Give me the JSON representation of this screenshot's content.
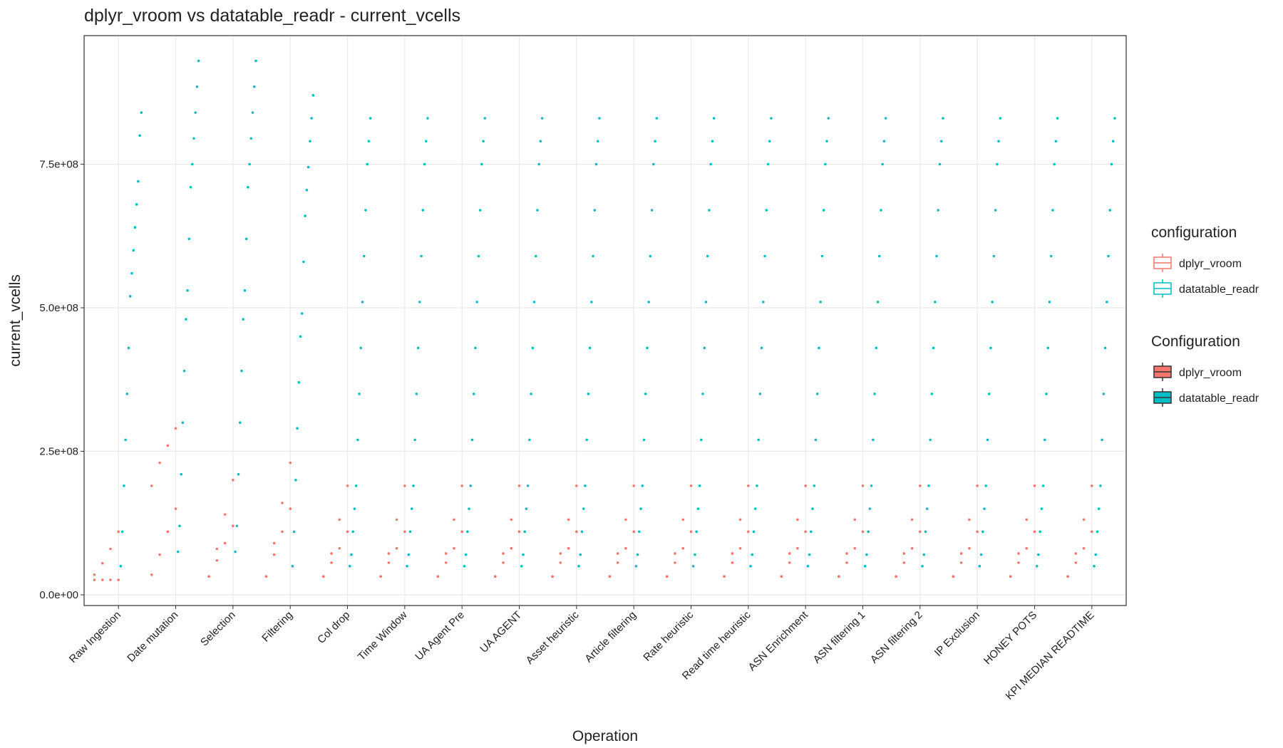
{
  "chart_data": {
    "type": "strip",
    "title": "dplyr_vroom vs datatable_readr - current_vcells",
    "x_label": "Operation",
    "y_label": "current_vcells",
    "categories": [
      "Raw Ingestion",
      "Date mutation",
      "Selection",
      "Filtering",
      "Col drop",
      "Time Window",
      "UA Agent Pre",
      "UA AGENT",
      "Asset heuristic",
      "Article filtering",
      "Rate heuristic",
      "Read time heuristic",
      "ASN Enrichment",
      "ASN filtering 1",
      "ASN filtering 2",
      "IP Exclusion",
      "HONEY POTS",
      "KPI MEDIAN READTIME"
    ],
    "series": [
      {
        "name": "dplyr_vroom",
        "color": "#f8766d",
        "values": [
          [
            35000000.0,
            55000000.0,
            80000000.0,
            110000000.0,
            26000000.0,
            26000000.0,
            26000000.0,
            26000000.0
          ],
          [
            35000000.0,
            70000000.0,
            110000000.0,
            150000000.0,
            190000000.0,
            230000000.0,
            260000000.0,
            290000000.0
          ],
          [
            32000000.0,
            60000000.0,
            90000000.0,
            120000000.0,
            32000000.0,
            80000000.0,
            140000000.0,
            200000000.0
          ],
          [
            32000000.0,
            70000000.0,
            110000000.0,
            150000000.0,
            32000000.0,
            90000000.0,
            160000000.0,
            230000000.0
          ],
          [
            32000000.0,
            56000000.0,
            81000000.0,
            110000000.0,
            32000000.0,
            72000000.0,
            131000000.0,
            190000000.0
          ],
          [
            32000000.0,
            56000000.0,
            81000000.0,
            110000000.0,
            32000000.0,
            72000000.0,
            131000000.0,
            190000000.0
          ],
          [
            32000000.0,
            56000000.0,
            81000000.0,
            110000000.0,
            32000000.0,
            72000000.0,
            131000000.0,
            190000000.0
          ],
          [
            32000000.0,
            56000000.0,
            81000000.0,
            110000000.0,
            32000000.0,
            72000000.0,
            131000000.0,
            190000000.0
          ],
          [
            32000000.0,
            56000000.0,
            81000000.0,
            110000000.0,
            32000000.0,
            72000000.0,
            131000000.0,
            190000000.0
          ],
          [
            32000000.0,
            56000000.0,
            81000000.0,
            110000000.0,
            32000000.0,
            72000000.0,
            131000000.0,
            190000000.0
          ],
          [
            32000000.0,
            56000000.0,
            81000000.0,
            110000000.0,
            32000000.0,
            72000000.0,
            131000000.0,
            190000000.0
          ],
          [
            32000000.0,
            56000000.0,
            81000000.0,
            110000000.0,
            32000000.0,
            72000000.0,
            131000000.0,
            190000000.0
          ],
          [
            32000000.0,
            56000000.0,
            81000000.0,
            110000000.0,
            32000000.0,
            72000000.0,
            131000000.0,
            190000000.0
          ],
          [
            32000000.0,
            56000000.0,
            81000000.0,
            110000000.0,
            32000000.0,
            72000000.0,
            131000000.0,
            190000000.0
          ],
          [
            32000000.0,
            56000000.0,
            81000000.0,
            110000000.0,
            32000000.0,
            72000000.0,
            131000000.0,
            190000000.0
          ],
          [
            32000000.0,
            56000000.0,
            81000000.0,
            110000000.0,
            32000000.0,
            72000000.0,
            131000000.0,
            190000000.0
          ],
          [
            32000000.0,
            56000000.0,
            81000000.0,
            110000000.0,
            32000000.0,
            72000000.0,
            131000000.0,
            190000000.0
          ],
          [
            32000000.0,
            56000000.0,
            81000000.0,
            110000000.0,
            32000000.0,
            72000000.0,
            131000000.0,
            190000000.0
          ]
        ]
      },
      {
        "name": "datatable_readr",
        "color": "#00bfc4",
        "values": [
          [
            50000000.0,
            110000000.0,
            190000000.0,
            270000000.0,
            350000000.0,
            430000000.0,
            520000000.0,
            560000000.0,
            600000000.0,
            640000000.0,
            680000000.0,
            720000000.0,
            800000000.0,
            840000000.0
          ],
          [
            75000000.0,
            120000000.0,
            210000000.0,
            300000000.0,
            390000000.0,
            480000000.0,
            530000000.0,
            620000000.0,
            710000000.0,
            750000000.0,
            795000000.0,
            840000000.0,
            885000000.0,
            930000000.0
          ],
          [
            75000000.0,
            120000000.0,
            210000000.0,
            300000000.0,
            390000000.0,
            480000000.0,
            530000000.0,
            620000000.0,
            710000000.0,
            750000000.0,
            795000000.0,
            840000000.0,
            885000000.0,
            930000000.0
          ],
          [
            50000000.0,
            110000000.0,
            200000000.0,
            290000000.0,
            370000000.0,
            450000000.0,
            490000000.0,
            580000000.0,
            660000000.0,
            705000000.0,
            745000000.0,
            790000000.0,
            830000000.0,
            870000000.0
          ],
          [
            50000000.0,
            70000000.0,
            110000000.0,
            150000000.0,
            190000000.0,
            270000000.0,
            350000000.0,
            430000000.0,
            510000000.0,
            590000000.0,
            670000000.0,
            750000000.0,
            790000000.0,
            830000000.0
          ],
          [
            50000000.0,
            70000000.0,
            110000000.0,
            150000000.0,
            190000000.0,
            270000000.0,
            350000000.0,
            430000000.0,
            510000000.0,
            590000000.0,
            670000000.0,
            750000000.0,
            790000000.0,
            830000000.0
          ],
          [
            50000000.0,
            70000000.0,
            110000000.0,
            150000000.0,
            190000000.0,
            270000000.0,
            350000000.0,
            430000000.0,
            510000000.0,
            590000000.0,
            670000000.0,
            750000000.0,
            790000000.0,
            830000000.0
          ],
          [
            50000000.0,
            70000000.0,
            110000000.0,
            150000000.0,
            190000000.0,
            270000000.0,
            350000000.0,
            430000000.0,
            510000000.0,
            590000000.0,
            670000000.0,
            750000000.0,
            790000000.0,
            830000000.0
          ],
          [
            50000000.0,
            70000000.0,
            110000000.0,
            150000000.0,
            190000000.0,
            270000000.0,
            350000000.0,
            430000000.0,
            510000000.0,
            590000000.0,
            670000000.0,
            750000000.0,
            790000000.0,
            830000000.0
          ],
          [
            50000000.0,
            70000000.0,
            110000000.0,
            150000000.0,
            190000000.0,
            270000000.0,
            350000000.0,
            430000000.0,
            510000000.0,
            590000000.0,
            670000000.0,
            750000000.0,
            790000000.0,
            830000000.0
          ],
          [
            50000000.0,
            70000000.0,
            110000000.0,
            150000000.0,
            190000000.0,
            270000000.0,
            350000000.0,
            430000000.0,
            510000000.0,
            590000000.0,
            670000000.0,
            750000000.0,
            790000000.0,
            830000000.0
          ],
          [
            50000000.0,
            70000000.0,
            110000000.0,
            150000000.0,
            190000000.0,
            270000000.0,
            350000000.0,
            430000000.0,
            510000000.0,
            590000000.0,
            670000000.0,
            750000000.0,
            790000000.0,
            830000000.0
          ],
          [
            50000000.0,
            70000000.0,
            110000000.0,
            150000000.0,
            190000000.0,
            270000000.0,
            350000000.0,
            430000000.0,
            510000000.0,
            590000000.0,
            670000000.0,
            750000000.0,
            790000000.0,
            830000000.0
          ],
          [
            50000000.0,
            70000000.0,
            110000000.0,
            150000000.0,
            190000000.0,
            270000000.0,
            350000000.0,
            430000000.0,
            510000000.0,
            590000000.0,
            670000000.0,
            750000000.0,
            790000000.0,
            830000000.0
          ],
          [
            50000000.0,
            70000000.0,
            110000000.0,
            150000000.0,
            190000000.0,
            270000000.0,
            350000000.0,
            430000000.0,
            510000000.0,
            590000000.0,
            670000000.0,
            750000000.0,
            790000000.0,
            830000000.0
          ],
          [
            50000000.0,
            70000000.0,
            110000000.0,
            150000000.0,
            190000000.0,
            270000000.0,
            350000000.0,
            430000000.0,
            510000000.0,
            590000000.0,
            670000000.0,
            750000000.0,
            790000000.0,
            830000000.0
          ],
          [
            50000000.0,
            70000000.0,
            110000000.0,
            150000000.0,
            190000000.0,
            270000000.0,
            350000000.0,
            430000000.0,
            510000000.0,
            590000000.0,
            670000000.0,
            750000000.0,
            790000000.0,
            830000000.0
          ],
          [
            50000000.0,
            70000000.0,
            110000000.0,
            150000000.0,
            190000000.0,
            270000000.0,
            350000000.0,
            430000000.0,
            510000000.0,
            590000000.0,
            670000000.0,
            750000000.0,
            790000000.0,
            830000000.0
          ]
        ]
      }
    ],
    "ylim": [
      -18600000.0,
      974000000.0
    ],
    "yticks": [
      {
        "value": 0,
        "label": "0.0e+00"
      },
      {
        "value": 250000000,
        "label": "2.5e+08"
      },
      {
        "value": 500000000,
        "label": "5.0e+08"
      },
      {
        "value": 750000000,
        "label": "7.5e+08"
      }
    ],
    "grid": true,
    "legend": "right",
    "legends": [
      {
        "title": "configuration",
        "style": "outline"
      },
      {
        "title": "Configuration",
        "style": "filled"
      }
    ]
  }
}
